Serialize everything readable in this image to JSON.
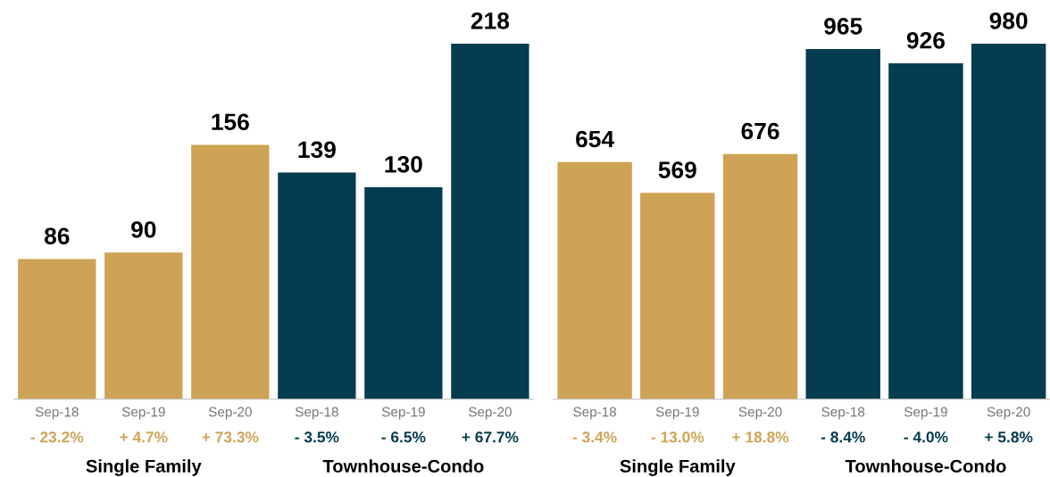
{
  "chart_data": [
    {
      "type": "bar",
      "categories": [
        "Sep-18",
        "Sep-19",
        "Sep-20",
        "Sep-18",
        "Sep-19",
        "Sep-20"
      ],
      "values": [
        86,
        90,
        156,
        139,
        130,
        218
      ],
      "colors": [
        "#cfa355",
        "#cfa355",
        "#cfa355",
        "#053c50",
        "#053c50",
        "#053c50"
      ],
      "data_labels": true,
      "grid": false,
      "legend": false,
      "annotations": [
        "- 23.2%",
        "+ 4.7%",
        "+ 73.3%",
        "- 3.5%",
        "- 6.5%",
        "+ 67.7%",
        "Single Family",
        "Townhouse-Condo"
      ]
    },
    {
      "type": "bar",
      "categories": [
        "Sep-18",
        "Sep-19",
        "Sep-20",
        "Sep-18",
        "Sep-19",
        "Sep-20"
      ],
      "values": [
        654,
        569,
        676,
        965,
        926,
        980
      ],
      "colors": [
        "#cfa355",
        "#cfa355",
        "#cfa355",
        "#053c50",
        "#053c50",
        "#053c50"
      ],
      "data_labels": true,
      "grid": false,
      "legend": false,
      "annotations": [
        "- 3.4%",
        "- 13.0%",
        "+ 18.8%",
        "- 8.4%",
        "- 4.0%",
        "+ 5.8%",
        "Single Family",
        "Townhouse-Condo"
      ]
    }
  ]
}
